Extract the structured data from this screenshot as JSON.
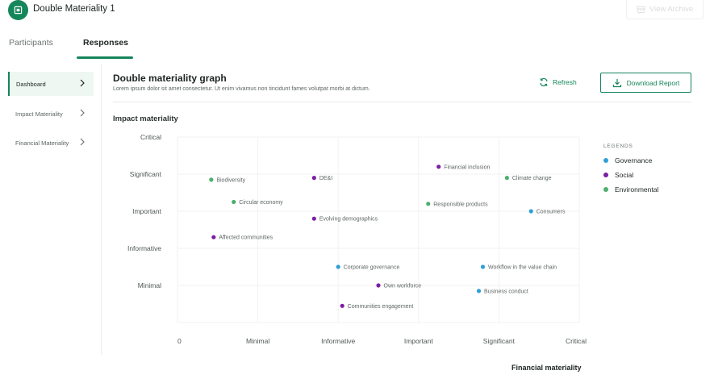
{
  "app": {
    "title": "Double Materiality 1",
    "archive_label": "View Archive"
  },
  "tabs": [
    {
      "label": "Participants"
    },
    {
      "label": "Responses"
    }
  ],
  "sidebar": {
    "items": [
      {
        "label": "Dashboard"
      },
      {
        "label": "Impact Materiality"
      },
      {
        "label": "Financial Materiality"
      }
    ]
  },
  "main": {
    "title": "Double materiality graph",
    "description": "Lorem ipsum dolor sit amet consectetur. Ut enim vivamus non tincidunt fames volutpat morbi at dictum.",
    "refresh_label": "Refresh",
    "download_label": "Download Report",
    "section_title": "Impact materiality"
  },
  "legend": {
    "heading": "LEGENDS",
    "items": [
      {
        "label": "Governance",
        "color": "#2f9fd8"
      },
      {
        "label": "Social",
        "color": "#7b1fa2"
      },
      {
        "label": "Environmental",
        "color": "#4caf6e"
      }
    ]
  },
  "chart_data": {
    "type": "scatter",
    "xlabel": "Financial materiality",
    "ylabel": "Impact materiality",
    "x_ticks": [
      "0",
      "Minimal",
      "Informative",
      "Important",
      "Significant",
      "Critical"
    ],
    "y_ticks": [
      "Minimal",
      "Informative",
      "Important",
      "Significant",
      "Critical"
    ],
    "xlim": [
      0,
      5
    ],
    "ylim": [
      0,
      5
    ],
    "grid": true,
    "legend_position": "right",
    "series": [
      {
        "name": "Governance",
        "color": "#2f9fd8",
        "points": [
          {
            "label": "Consumers",
            "x": 4.4,
            "y": 3.0
          },
          {
            "label": "Corporate governance",
            "x": 2.0,
            "y": 1.5
          },
          {
            "label": "Workflow in the value chain",
            "x": 3.8,
            "y": 1.5
          },
          {
            "label": "Business conduct",
            "x": 3.75,
            "y": 0.85
          }
        ]
      },
      {
        "name": "Social",
        "color": "#7b1fa2",
        "points": [
          {
            "label": "DE&I",
            "x": 1.7,
            "y": 3.9
          },
          {
            "label": "Financial inclusion",
            "x": 3.25,
            "y": 4.2
          },
          {
            "label": "Evolving demographics",
            "x": 1.7,
            "y": 2.8
          },
          {
            "label": "Affected communities",
            "x": 0.45,
            "y": 2.3
          },
          {
            "label": "Own workforce",
            "x": 2.5,
            "y": 1.0
          },
          {
            "label": "Communities engagement",
            "x": 2.05,
            "y": 0.45
          }
        ]
      },
      {
        "name": "Environmental",
        "color": "#4caf6e",
        "points": [
          {
            "label": "Biodiversity",
            "x": 0.42,
            "y": 3.85
          },
          {
            "label": "Climate change",
            "x": 4.1,
            "y": 3.9
          },
          {
            "label": "Circular economy",
            "x": 0.7,
            "y": 3.25
          },
          {
            "label": "Responsible products",
            "x": 3.12,
            "y": 3.2
          }
        ]
      }
    ]
  }
}
